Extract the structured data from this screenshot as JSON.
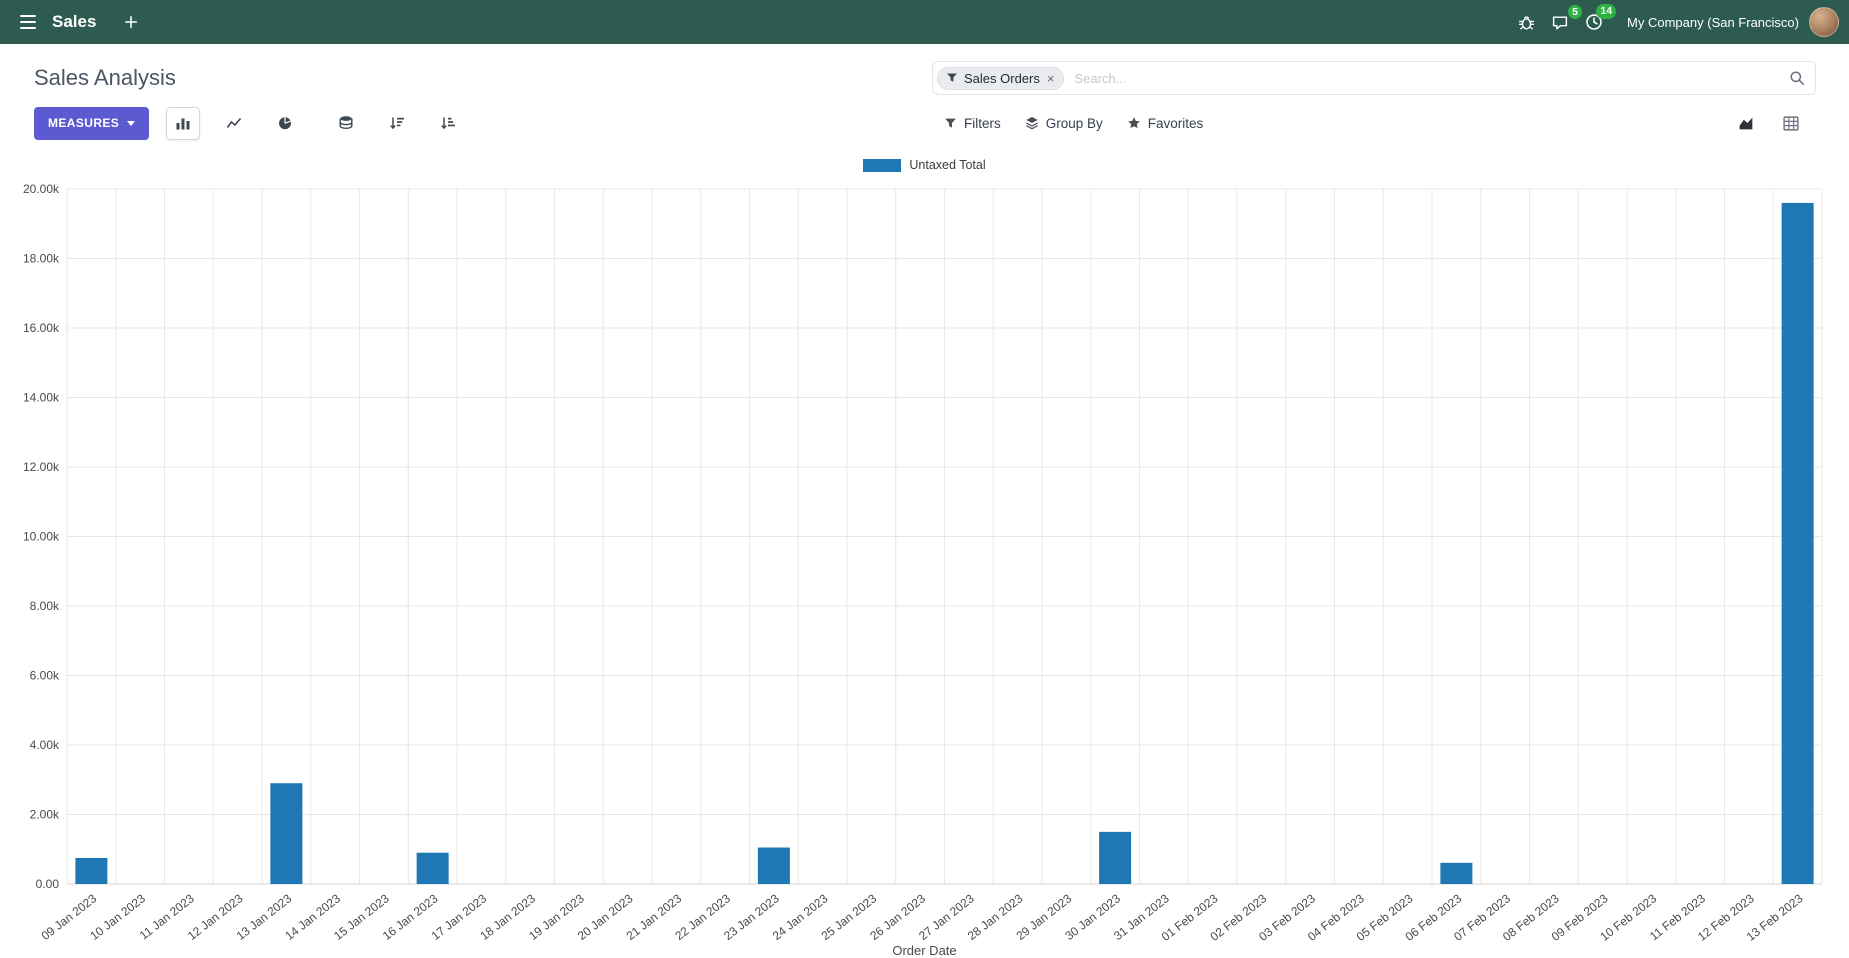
{
  "nav": {
    "app_name": "Sales",
    "company": "My Company (San Francisco)",
    "chat_badge": "5",
    "activity_badge": "14"
  },
  "control_panel": {
    "title": "Sales Analysis",
    "search": {
      "facet": "Sales Orders",
      "facet_remove": "×",
      "placeholder": "Search..."
    },
    "measures_label": "MEASURES",
    "filters_label": "Filters",
    "groupby_label": "Group By",
    "favorites_label": "Favorites"
  },
  "ui_colors": {
    "navbar": "#2e5b50",
    "primary_button": "#5b5ad1",
    "badge_green": "#2fb344"
  },
  "chart_data": {
    "type": "bar",
    "title": "",
    "xlabel": "Order Date",
    "ylabel": "",
    "ylim": [
      0,
      20000
    ],
    "ytick_step": 2000,
    "ytick_labels": [
      "0.00",
      "2.00k",
      "4.00k",
      "6.00k",
      "8.00k",
      "10.00k",
      "12.00k",
      "14.00k",
      "16.00k",
      "18.00k",
      "20.00k"
    ],
    "grid": true,
    "legend_position": "top",
    "categories": [
      "09 Jan 2023",
      "10 Jan 2023",
      "11 Jan 2023",
      "12 Jan 2023",
      "13 Jan 2023",
      "14 Jan 2023",
      "15 Jan 2023",
      "16 Jan 2023",
      "17 Jan 2023",
      "18 Jan 2023",
      "19 Jan 2023",
      "20 Jan 2023",
      "21 Jan 2023",
      "22 Jan 2023",
      "23 Jan 2023",
      "24 Jan 2023",
      "25 Jan 2023",
      "26 Jan 2023",
      "27 Jan 2023",
      "28 Jan 2023",
      "29 Jan 2023",
      "30 Jan 2023",
      "31 Jan 2023",
      "01 Feb 2023",
      "02 Feb 2023",
      "03 Feb 2023",
      "04 Feb 2023",
      "05 Feb 2023",
      "06 Feb 2023",
      "07 Feb 2023",
      "08 Feb 2023",
      "09 Feb 2023",
      "10 Feb 2023",
      "11 Feb 2023",
      "12 Feb 2023",
      "13 Feb 2023"
    ],
    "series": [
      {
        "name": "Untaxed Total",
        "color": "#1f77b4",
        "values": [
          750,
          0,
          0,
          0,
          2900,
          0,
          0,
          900,
          0,
          0,
          0,
          0,
          0,
          0,
          1050,
          0,
          0,
          0,
          0,
          0,
          0,
          1500,
          0,
          0,
          0,
          0,
          0,
          0,
          610,
          0,
          0,
          0,
          0,
          0,
          0,
          19600
        ]
      }
    ]
  }
}
